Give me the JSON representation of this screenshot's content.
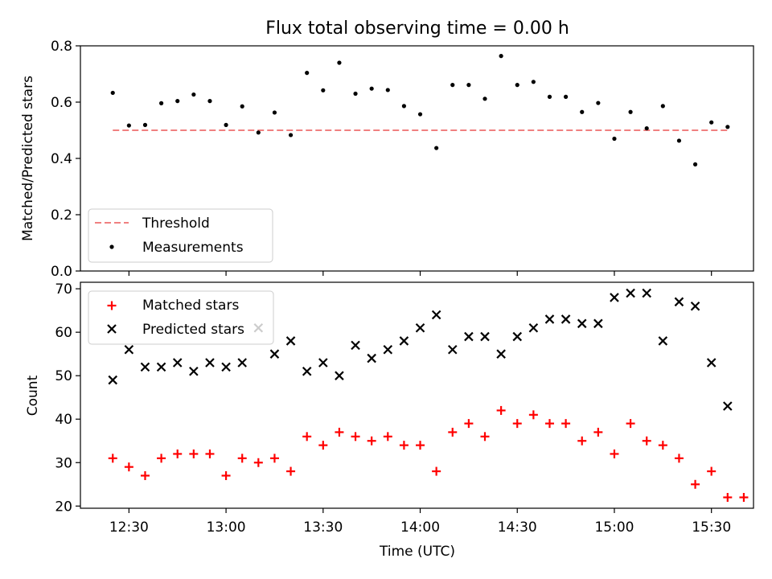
{
  "chart_data": [
    {
      "type": "scatter",
      "title": "Flux total observing time = 0.00 h",
      "xlabel": "",
      "ylabel": "Matched/Predicted stars",
      "ylim": [
        0,
        0.8
      ],
      "xlim": [
        "12:15",
        "15:43"
      ],
      "yticks": [
        "0.0",
        "0.2",
        "0.4",
        "0.6",
        "0.8"
      ],
      "legend": {
        "position": "lower-left",
        "entries": [
          "Threshold",
          "Measurements"
        ]
      },
      "series": [
        {
          "name": "Threshold",
          "kind": "dashed-line",
          "color": "#f08080",
          "x": [
            "12:25",
            "15:35"
          ],
          "y": [
            0.5,
            0.5
          ]
        },
        {
          "name": "Measurements",
          "kind": "dot",
          "color": "#000000",
          "x": [
            "12:25",
            "12:30",
            "12:35",
            "12:40",
            "12:45",
            "12:50",
            "12:55",
            "13:00",
            "13:05",
            "13:10",
            "13:15",
            "13:20",
            "13:25",
            "13:30",
            "13:35",
            "13:40",
            "13:45",
            "13:50",
            "13:55",
            "14:00",
            "14:05",
            "14:10",
            "14:15",
            "14:20",
            "14:25",
            "14:30",
            "14:35",
            "14:40",
            "14:45",
            "14:50",
            "14:55",
            "15:00",
            "15:05",
            "15:10",
            "15:15",
            "15:20",
            "15:25",
            "15:30",
            "15:35"
          ],
          "y": [
            0.633,
            0.517,
            0.519,
            0.596,
            0.604,
            0.627,
            0.604,
            0.519,
            0.585,
            0.492,
            0.563,
            0.483,
            0.704,
            0.642,
            0.74,
            0.63,
            0.648,
            0.643,
            0.586,
            0.557,
            0.437,
            0.661,
            0.661,
            0.612,
            0.764,
            0.661,
            0.672,
            0.619,
            0.619,
            0.565,
            0.597,
            0.47,
            0.565,
            0.507,
            0.586,
            0.463,
            0.379,
            0.528,
            0.512
          ]
        }
      ]
    },
    {
      "type": "scatter",
      "title": "",
      "xlabel": "Time (UTC)",
      "ylabel": "Count",
      "ylim": [
        19.5,
        71.5
      ],
      "xlim": [
        "12:15",
        "15:43"
      ],
      "xticks": [
        "12:30",
        "13:00",
        "13:30",
        "14:00",
        "14:30",
        "15:00",
        "15:30"
      ],
      "yticks": [
        "20",
        "30",
        "40",
        "50",
        "60",
        "70"
      ],
      "legend": {
        "position": "upper-left",
        "entries": [
          "Matched stars",
          "Predicted stars"
        ]
      },
      "series": [
        {
          "name": "Matched stars",
          "kind": "plus",
          "color": "#ff0000",
          "x": [
            "12:25",
            "12:30",
            "12:35",
            "12:40",
            "12:45",
            "12:50",
            "12:55",
            "13:00",
            "13:05",
            "13:10",
            "13:15",
            "13:20",
            "13:25",
            "13:30",
            "13:35",
            "13:40",
            "13:45",
            "13:50",
            "13:55",
            "14:00",
            "14:05",
            "14:10",
            "14:15",
            "14:20",
            "14:25",
            "14:30",
            "14:35",
            "14:40",
            "14:45",
            "14:50",
            "14:55",
            "15:00",
            "15:05",
            "15:10",
            "15:15",
            "15:20",
            "15:25",
            "15:30",
            "15:35",
            "15:40"
          ],
          "y": [
            31,
            29,
            27,
            31,
            32,
            32,
            32,
            27,
            31,
            30,
            31,
            28,
            36,
            34,
            37,
            36,
            35,
            36,
            34,
            34,
            28,
            37,
            39,
            36,
            42,
            39,
            41,
            39,
            39,
            35,
            37,
            32,
            39,
            35,
            34,
            31,
            25,
            28,
            22,
            22
          ]
        },
        {
          "name": "Predicted stars",
          "kind": "x",
          "color": "#000000",
          "x": [
            "12:25",
            "12:30",
            "12:35",
            "12:40",
            "12:45",
            "12:50",
            "12:55",
            "13:00",
            "13:05",
            "13:10",
            "13:15",
            "13:20",
            "13:25",
            "13:30",
            "13:35",
            "13:40",
            "13:45",
            "13:50",
            "13:55",
            "14:00",
            "14:05",
            "14:10",
            "14:15",
            "14:20",
            "14:25",
            "14:30",
            "14:35",
            "14:40",
            "14:45",
            "14:50",
            "14:55",
            "15:00",
            "15:05",
            "15:10",
            "15:15",
            "15:20",
            "15:25",
            "15:30",
            "15:35"
          ],
          "y": [
            49,
            56,
            52,
            52,
            53,
            51,
            53,
            52,
            53,
            61,
            55,
            58,
            51,
            53,
            50,
            57,
            54,
            56,
            58,
            61,
            64,
            56,
            59,
            59,
            55,
            59,
            61,
            63,
            63,
            62,
            62,
            68,
            69,
            69,
            58,
            67,
            66,
            53,
            43
          ]
        }
      ]
    }
  ]
}
